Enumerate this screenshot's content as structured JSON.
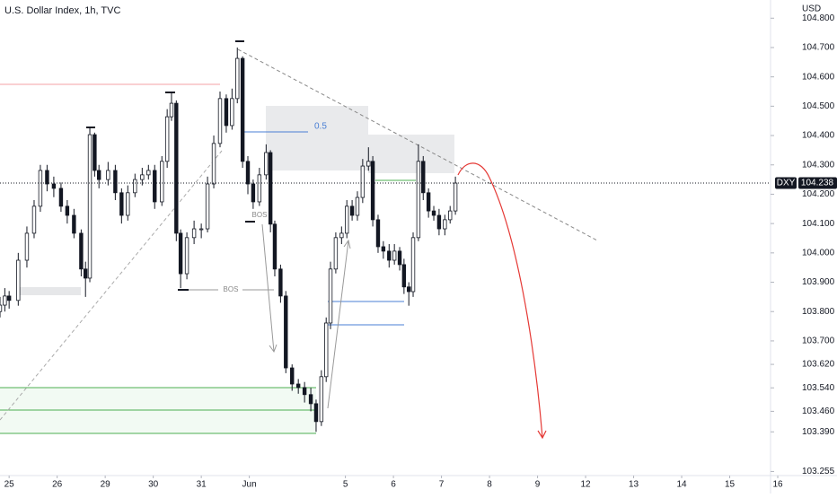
{
  "chart_data": {
    "type": "candlestick",
    "title": "U.S. Dollar Index, 1h, TVC",
    "currency": "USD",
    "x": [
      -0.19,
      -0.09,
      0.0,
      0.19,
      0.37,
      0.52,
      0.65,
      0.79,
      0.93,
      1.08,
      1.21,
      1.35,
      1.5,
      1.59,
      1.68,
      1.78,
      1.87,
      2.06,
      2.21,
      2.34,
      2.47,
      2.62,
      2.77,
      2.9,
      3.03,
      3.18,
      3.29,
      3.38,
      3.48,
      3.57,
      3.7,
      3.85,
      4.0,
      4.13,
      4.26,
      4.39,
      4.52,
      4.64,
      4.75,
      4.86,
      4.97,
      5.08,
      5.21,
      5.35,
      5.44,
      5.53,
      5.65,
      5.76,
      5.89,
      6.02,
      6.15,
      6.28,
      6.39,
      6.5,
      6.6,
      6.69,
      6.8,
      6.92,
      7.03,
      7.14,
      7.25,
      7.36,
      7.48,
      7.57,
      7.68,
      7.79,
      7.91,
      8.02,
      8.13,
      8.22,
      8.32,
      8.41,
      8.52,
      8.62,
      8.73,
      8.84,
      8.95,
      9.07,
      9.18,
      9.29
    ],
    "open": [
      103.8,
      103.822,
      103.853,
      103.838,
      103.975,
      104.067,
      104.159,
      104.281,
      104.235,
      104.22,
      104.159,
      104.128,
      104.067,
      103.945,
      103.914,
      104.403,
      104.281,
      104.25,
      104.281,
      104.205,
      104.128,
      104.205,
      104.25,
      104.266,
      104.281,
      104.174,
      104.312,
      104.464,
      104.51,
      104.067,
      103.929,
      104.052,
      104.082,
      104.082,
      104.235,
      104.373,
      104.526,
      104.434,
      104.526,
      104.663,
      104.312,
      104.235,
      104.174,
      104.266,
      104.342,
      104.098,
      103.945,
      103.853,
      103.608,
      103.553,
      103.541,
      103.517,
      103.486,
      103.425,
      103.578,
      103.761,
      103.945,
      104.052,
      104.067,
      104.159,
      104.128,
      104.189,
      104.296,
      104.312,
      104.113,
      104.021,
      104.006,
      103.975,
      104.006,
      103.96,
      103.884,
      103.868,
      104.052,
      104.312,
      104.205,
      104.143,
      104.128,
      104.082,
      104.113,
      104.143
    ],
    "high": [
      103.85,
      103.88,
      103.87,
      104.0,
      104.09,
      104.18,
      104.3,
      104.3,
      104.26,
      104.24,
      104.18,
      104.15,
      104.08,
      103.97,
      104.43,
      104.41,
      104.3,
      104.31,
      104.3,
      104.22,
      104.23,
      104.27,
      104.29,
      104.3,
      104.3,
      104.33,
      104.49,
      104.55,
      104.52,
      104.08,
      104.07,
      104.11,
      104.1,
      104.26,
      104.4,
      104.55,
      104.54,
      104.56,
      104.7,
      104.67,
      104.33,
      104.25,
      104.29,
      104.37,
      104.35,
      104.11,
      103.96,
      103.87,
      103.62,
      103.57,
      103.56,
      103.54,
      103.5,
      103.6,
      103.78,
      103.97,
      104.07,
      104.09,
      104.18,
      104.18,
      104.21,
      104.32,
      104.36,
      104.33,
      104.13,
      104.04,
      104.03,
      104.03,
      104.02,
      103.98,
      103.9,
      104.07,
      104.37,
      104.33,
      104.22,
      104.16,
      104.15,
      104.13,
      104.16,
      104.26
    ],
    "low": [
      103.78,
      103.8,
      103.81,
      103.82,
      103.95,
      104.05,
      104.14,
      104.21,
      104.19,
      104.14,
      104.1,
      104.05,
      103.92,
      103.85,
      103.9,
      104.26,
      104.22,
      104.23,
      104.18,
      104.1,
      104.11,
      104.19,
      104.23,
      104.25,
      104.15,
      104.16,
      104.29,
      104.45,
      104.04,
      103.88,
      103.91,
      104.03,
      104.05,
      104.07,
      104.22,
      104.36,
      104.41,
      104.42,
      104.51,
      104.29,
      104.2,
      104.15,
      104.16,
      104.25,
      104.07,
      103.92,
      103.83,
      103.59,
      103.53,
      103.52,
      103.49,
      103.46,
      103.39,
      103.41,
      103.56,
      103.74,
      103.93,
      104.03,
      104.05,
      104.11,
      104.11,
      104.17,
      104.28,
      104.09,
      104.0,
      103.98,
      103.95,
      103.96,
      103.94,
      103.86,
      103.82,
      103.85,
      104.04,
      104.18,
      104.12,
      104.11,
      104.06,
      104.06,
      104.1,
      104.13
    ],
    "close": [
      103.822,
      103.853,
      103.838,
      103.975,
      104.067,
      104.159,
      104.281,
      104.235,
      104.22,
      104.159,
      104.128,
      104.067,
      103.945,
      103.914,
      104.403,
      104.281,
      104.25,
      104.281,
      104.205,
      104.128,
      104.205,
      104.25,
      104.266,
      104.281,
      104.174,
      104.312,
      104.464,
      104.51,
      104.067,
      103.929,
      104.052,
      104.082,
      104.082,
      104.235,
      104.373,
      104.526,
      104.434,
      104.526,
      104.663,
      104.312,
      104.235,
      104.174,
      104.266,
      104.342,
      104.098,
      103.945,
      103.853,
      103.608,
      103.553,
      103.541,
      103.517,
      103.486,
      103.425,
      103.578,
      103.761,
      103.945,
      104.052,
      104.067,
      104.159,
      104.128,
      104.189,
      104.296,
      104.312,
      104.113,
      104.021,
      104.006,
      103.975,
      104.006,
      103.96,
      103.884,
      103.868,
      104.052,
      104.312,
      104.205,
      104.143,
      104.128,
      104.082,
      104.113,
      104.143,
      104.238
    ],
    "up_color": "#ffffff",
    "down_color": "#131722",
    "xlim": [
      -0.19,
      15.85
    ],
    "xticks": [
      {
        "value": 0,
        "label": "25"
      },
      {
        "value": 1,
        "label": "26"
      },
      {
        "value": 2,
        "label": "29"
      },
      {
        "value": 3,
        "label": "30"
      },
      {
        "value": 4,
        "label": "31"
      },
      {
        "value": 5,
        "label": "Jun"
      },
      {
        "value": 7,
        "label": "5"
      },
      {
        "value": 8,
        "label": "6"
      },
      {
        "value": 9,
        "label": "7"
      },
      {
        "value": 10,
        "label": "8"
      },
      {
        "value": 11,
        "label": "9"
      },
      {
        "value": 12,
        "label": "12"
      },
      {
        "value": 13,
        "label": "13"
      },
      {
        "value": 14,
        "label": "14"
      },
      {
        "value": 15,
        "label": "15"
      },
      {
        "value": 16,
        "label": "16"
      }
    ],
    "ylim": [
      103.241,
      104.862
    ],
    "yticks": [
      {
        "value": 104.8,
        "label": "104.800"
      },
      {
        "value": 104.7,
        "label": "104.700"
      },
      {
        "value": 104.6,
        "label": "104.600"
      },
      {
        "value": 104.5,
        "label": "104.500"
      },
      {
        "value": 104.4,
        "label": "104.400"
      },
      {
        "value": 104.3,
        "label": "104.300"
      },
      {
        "value": 104.2,
        "label": "104.200"
      },
      {
        "value": 104.1,
        "label": "104.100"
      },
      {
        "value": 104.0,
        "label": "104.000"
      },
      {
        "value": 103.9,
        "label": "103.900"
      },
      {
        "value": 103.8,
        "label": "103.800"
      },
      {
        "value": 103.7,
        "label": "103.700"
      },
      {
        "value": 103.62,
        "label": "103.620"
      },
      {
        "value": 103.54,
        "label": "103.540"
      },
      {
        "value": 103.46,
        "label": "103.460"
      },
      {
        "value": 103.39,
        "label": "103.390"
      },
      {
        "value": 103.255,
        "label": "103.255"
      }
    ],
    "last_price": {
      "symbol": "DXY",
      "value": 104.238
    },
    "annotations": {
      "bos": [
        "BOS",
        "BOS"
      ],
      "fib": "0.5"
    }
  }
}
